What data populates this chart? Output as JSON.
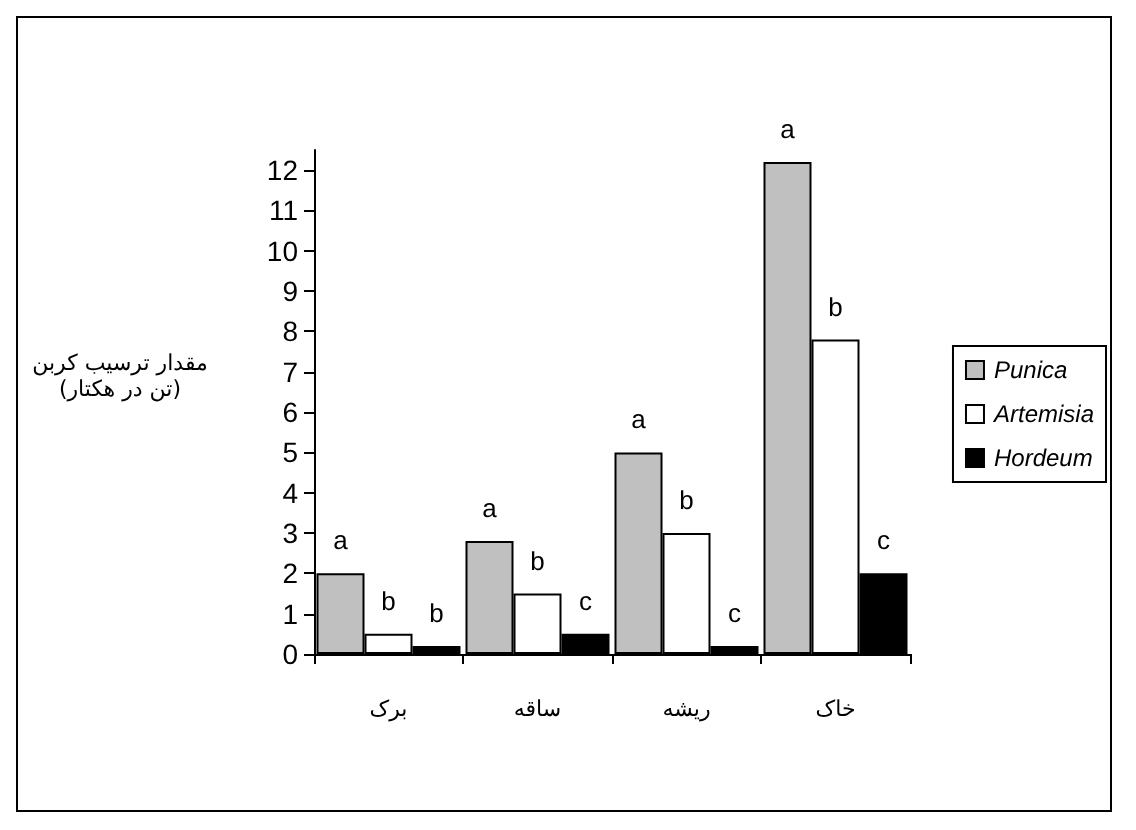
{
  "chart_data": {
    "type": "bar",
    "ylabel": "مقدار ترسیب کربن\n(تن در هکتار)",
    "categories": [
      "برک",
      "ساقه",
      "ریشه",
      "خاک"
    ],
    "series": [
      {
        "name": "Punica",
        "color": "#c0c0c0",
        "values": [
          2.0,
          2.8,
          5.0,
          12.2
        ],
        "value_labels": [
          "a",
          "a",
          "a",
          "a"
        ]
      },
      {
        "name": "Artemisia",
        "color": "#ffffff",
        "values": [
          0.5,
          1.5,
          3.0,
          7.8
        ],
        "value_labels": [
          "b",
          "b",
          "b",
          "b"
        ]
      },
      {
        "name": "Hordeum",
        "color": "#000000",
        "values": [
          0.2,
          0.5,
          0.2,
          2.0
        ],
        "value_labels": [
          "b",
          "c",
          "c",
          "c"
        ]
      }
    ],
    "ylim": [
      0,
      12.5
    ],
    "yticks": [
      0,
      1,
      2,
      3,
      4,
      5,
      6,
      7,
      8,
      9,
      10,
      11,
      12
    ],
    "grid": false,
    "legend": "right"
  }
}
